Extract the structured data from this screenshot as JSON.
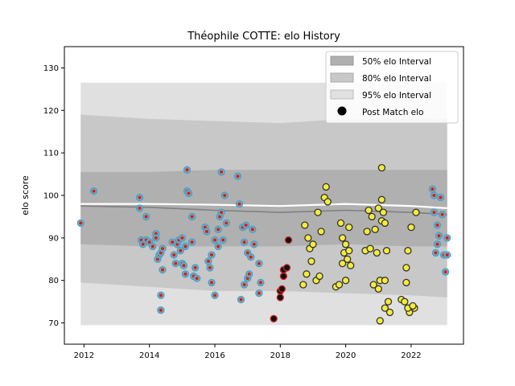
{
  "chart_data": {
    "type": "scatter",
    "title": "Théophile COTTE: elo History",
    "xlabel": "",
    "ylabel": "elo score",
    "xlim": [
      2011.4,
      2023.6
    ],
    "ylim": [
      65,
      135
    ],
    "xticks": [
      2012,
      2014,
      2016,
      2018,
      2020,
      2022
    ],
    "yticks": [
      70,
      80,
      90,
      100,
      110,
      120,
      130
    ],
    "grid": false,
    "legend": {
      "placement": "top-right",
      "entries": [
        "50% elo Interval",
        "80% elo Interval",
        "95% elo Interval",
        "Post Match elo"
      ]
    },
    "colors": {
      "band50": "#b0b0b0",
      "band80": "#c8c8c8",
      "band95": "#e0e0e0",
      "mean_dark": "#808080",
      "mean_light": "#ffffff",
      "point_blue_edge": "#33a6d6",
      "point_blue_fill": "#a0a0a0",
      "point_red_edge": "#cc2222",
      "point_black_fill": "#111111",
      "point_yellow_fill": "#f4ec3c",
      "point_yellow_edge": "#333333"
    },
    "bands": {
      "x": [
        2011.9,
        2014.0,
        2016.0,
        2018.0,
        2020.0,
        2022.0,
        2023.1
      ],
      "p95_upper": [
        126.5,
        126.5,
        126.5,
        126.5,
        126.5,
        126.5,
        126.5
      ],
      "p95_lower": [
        69.5,
        69.5,
        69.5,
        69.5,
        69.5,
        69.5,
        69.5
      ],
      "p80_upper": [
        119.0,
        118.0,
        117.5,
        117.0,
        118.0,
        118.0,
        118.0
      ],
      "p80_lower": [
        79.5,
        78.5,
        77.5,
        77.5,
        77.0,
        76.5,
        76.0
      ],
      "p50_upper": [
        105.5,
        105.5,
        106.0,
        106.0,
        106.0,
        106.0,
        106.0
      ],
      "p50_lower": [
        88.5,
        88.0,
        88.0,
        88.0,
        88.5,
        88.0,
        88.0
      ]
    },
    "mean_series": [
      {
        "name": "",
        "x": [
          2011.9,
          2014.0,
          2016.0,
          2018.0,
          2020.0,
          2022.0,
          2023.1
        ],
        "y": [
          97.5,
          97.2,
          96.5,
          96.0,
          96.5,
          96.0,
          95.5
        ]
      },
      {
        "name": "",
        "x": [
          2011.9,
          2014.0,
          2016.0,
          2018.0,
          2020.0,
          2022.0,
          2023.1
        ],
        "y": [
          98.0,
          98.0,
          97.8,
          97.5,
          98.0,
          97.5,
          97.0
        ]
      }
    ],
    "series": [
      {
        "name": "Post Match elo",
        "group": "blue",
        "points": [
          [
            2011.9,
            93.5
          ],
          [
            2012.3,
            101.0
          ],
          [
            2013.7,
            99.5
          ],
          [
            2013.7,
            97.0
          ],
          [
            2013.75,
            89.5
          ],
          [
            2013.8,
            88.5
          ],
          [
            2013.9,
            89.5
          ],
          [
            2013.9,
            95.0
          ],
          [
            2014.0,
            89.0
          ],
          [
            2014.1,
            88.0
          ],
          [
            2014.2,
            91.0
          ],
          [
            2014.2,
            90.0
          ],
          [
            2014.25,
            85.0
          ],
          [
            2014.3,
            86.0
          ],
          [
            2014.35,
            86.5
          ],
          [
            2014.4,
            87.5
          ],
          [
            2014.35,
            76.5
          ],
          [
            2014.35,
            73.0
          ],
          [
            2014.4,
            82.5
          ],
          [
            2014.7,
            89.0
          ],
          [
            2014.75,
            86.0
          ],
          [
            2014.8,
            84.0
          ],
          [
            2014.85,
            88.5
          ],
          [
            2014.9,
            89.5
          ],
          [
            2014.95,
            87.0
          ],
          [
            2015.0,
            90.0
          ],
          [
            2015.0,
            84.0
          ],
          [
            2015.05,
            83.5
          ],
          [
            2015.1,
            88.0
          ],
          [
            2015.1,
            81.5
          ],
          [
            2015.15,
            101.0
          ],
          [
            2015.2,
            100.5
          ],
          [
            2015.15,
            106.0
          ],
          [
            2015.3,
            95.0
          ],
          [
            2015.3,
            89.0
          ],
          [
            2015.35,
            81.0
          ],
          [
            2015.4,
            83.0
          ],
          [
            2015.45,
            80.5
          ],
          [
            2015.7,
            92.5
          ],
          [
            2015.75,
            91.5
          ],
          [
            2015.8,
            84.5
          ],
          [
            2015.85,
            83.0
          ],
          [
            2015.9,
            86.0
          ],
          [
            2015.9,
            79.5
          ],
          [
            2016.0,
            89.5
          ],
          [
            2016.0,
            76.5
          ],
          [
            2016.1,
            92.0
          ],
          [
            2016.1,
            88.0
          ],
          [
            2016.15,
            95.0
          ],
          [
            2016.2,
            96.0
          ],
          [
            2016.25,
            89.5
          ],
          [
            2016.2,
            105.5
          ],
          [
            2016.3,
            100.0
          ],
          [
            2016.35,
            93.5
          ],
          [
            2016.7,
            104.5
          ],
          [
            2016.75,
            98.0
          ],
          [
            2016.8,
            75.5
          ],
          [
            2016.85,
            92.5
          ],
          [
            2016.9,
            89.0
          ],
          [
            2016.95,
            93.0
          ],
          [
            2016.9,
            79.0
          ],
          [
            2017.0,
            80.5
          ],
          [
            2017.0,
            86.5
          ],
          [
            2017.05,
            81.5
          ],
          [
            2017.1,
            85.5
          ],
          [
            2017.15,
            92.0
          ],
          [
            2017.2,
            88.5
          ],
          [
            2017.35,
            77.0
          ],
          [
            2017.35,
            84.0
          ],
          [
            2017.4,
            79.5
          ]
        ]
      },
      {
        "name": "",
        "group": "black",
        "points": [
          [
            2017.8,
            71.0
          ],
          [
            2018.0,
            77.5
          ],
          [
            2018.0,
            76.0
          ],
          [
            2018.05,
            78.0
          ],
          [
            2018.1,
            81.0
          ],
          [
            2018.1,
            82.5
          ],
          [
            2018.2,
            83.0
          ],
          [
            2018.25,
            89.5
          ]
        ]
      },
      {
        "name": "",
        "group": "yellow",
        "points": [
          [
            2018.7,
            79.0
          ],
          [
            2018.75,
            93.0
          ],
          [
            2018.8,
            81.5
          ],
          [
            2018.85,
            90.0
          ],
          [
            2018.9,
            87.5
          ],
          [
            2018.95,
            84.5
          ],
          [
            2019.0,
            88.5
          ],
          [
            2019.1,
            80.0
          ],
          [
            2019.15,
            96.0
          ],
          [
            2019.2,
            81.0
          ],
          [
            2019.25,
            91.5
          ],
          [
            2019.35,
            99.5
          ],
          [
            2019.4,
            102.0
          ],
          [
            2019.45,
            98.5
          ],
          [
            2019.7,
            78.5
          ],
          [
            2019.8,
            79.0
          ],
          [
            2019.85,
            93.5
          ],
          [
            2019.9,
            90.0
          ],
          [
            2019.95,
            86.5
          ],
          [
            2019.9,
            84.0
          ],
          [
            2020.0,
            88.5
          ],
          [
            2020.05,
            85.0
          ],
          [
            2020.1,
            92.5
          ],
          [
            2020.1,
            87.0
          ],
          [
            2020.15,
            83.5
          ],
          [
            2020.0,
            80.0
          ],
          [
            2020.6,
            87.0
          ],
          [
            2020.65,
            91.5
          ],
          [
            2020.7,
            96.5
          ],
          [
            2020.75,
            87.5
          ],
          [
            2020.8,
            95.0
          ],
          [
            2020.85,
            79.0
          ],
          [
            2020.9,
            92.0
          ],
          [
            2020.95,
            86.5
          ],
          [
            2021.0,
            78.0
          ],
          [
            2021.05,
            80.0
          ],
          [
            2021.1,
            99.0
          ],
          [
            2021.1,
            94.0
          ],
          [
            2021.15,
            96.0
          ],
          [
            2021.2,
            93.5
          ],
          [
            2021.25,
            87.0
          ],
          [
            2021.2,
            73.5
          ],
          [
            2021.3,
            75.0
          ],
          [
            2021.35,
            72.5
          ],
          [
            2021.2,
            80.0
          ],
          [
            2021.05,
            70.5
          ],
          [
            2021.1,
            106.5
          ],
          [
            2021.0,
            97.0
          ],
          [
            2021.7,
            75.5
          ],
          [
            2021.8,
            75.0
          ],
          [
            2021.85,
            79.5
          ],
          [
            2021.85,
            83.0
          ],
          [
            2021.9,
            87.0
          ],
          [
            2021.95,
            72.5
          ],
          [
            2021.9,
            73.5
          ],
          [
            2022.0,
            92.5
          ],
          [
            2022.1,
            73.5
          ],
          [
            2022.05,
            74.0
          ],
          [
            2022.15,
            96.0
          ]
        ]
      },
      {
        "name": "",
        "group": "blue",
        "points": [
          [
            2022.65,
            101.5
          ],
          [
            2022.7,
            100.0
          ],
          [
            2022.7,
            96.0
          ],
          [
            2022.75,
            86.5
          ],
          [
            2022.8,
            93.0
          ],
          [
            2022.8,
            88.5
          ],
          [
            2022.85,
            90.5
          ],
          [
            2022.9,
            99.5
          ],
          [
            2022.95,
            95.5
          ],
          [
            2023.0,
            86.0
          ],
          [
            2023.05,
            82.0
          ],
          [
            2023.1,
            90.0
          ],
          [
            2023.1,
            86.0
          ]
        ]
      }
    ]
  }
}
